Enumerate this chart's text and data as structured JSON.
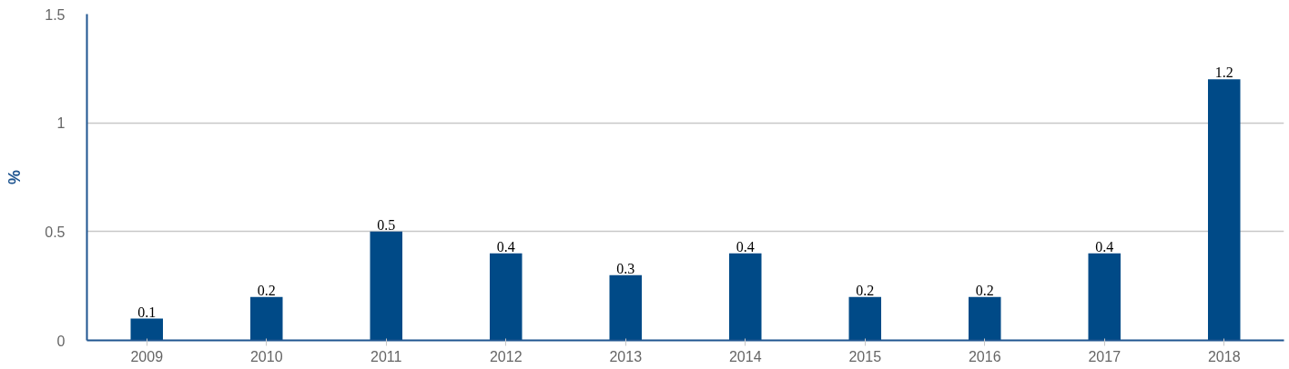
{
  "chart_data": {
    "type": "bar",
    "ylabel": "%",
    "categories": [
      "2009",
      "2010",
      "2011",
      "2012",
      "2013",
      "2014",
      "2015",
      "2016",
      "2017",
      "2018"
    ],
    "values": [
      0.1,
      0.2,
      0.5,
      0.4,
      0.3,
      0.4,
      0.2,
      0.2,
      0.4,
      1.2
    ],
    "color": "#004a87",
    "ylim": [
      0,
      1.5
    ],
    "yticks": [
      0,
      0.5,
      1,
      1.5
    ],
    "grid": "y",
    "data_labels": true
  }
}
